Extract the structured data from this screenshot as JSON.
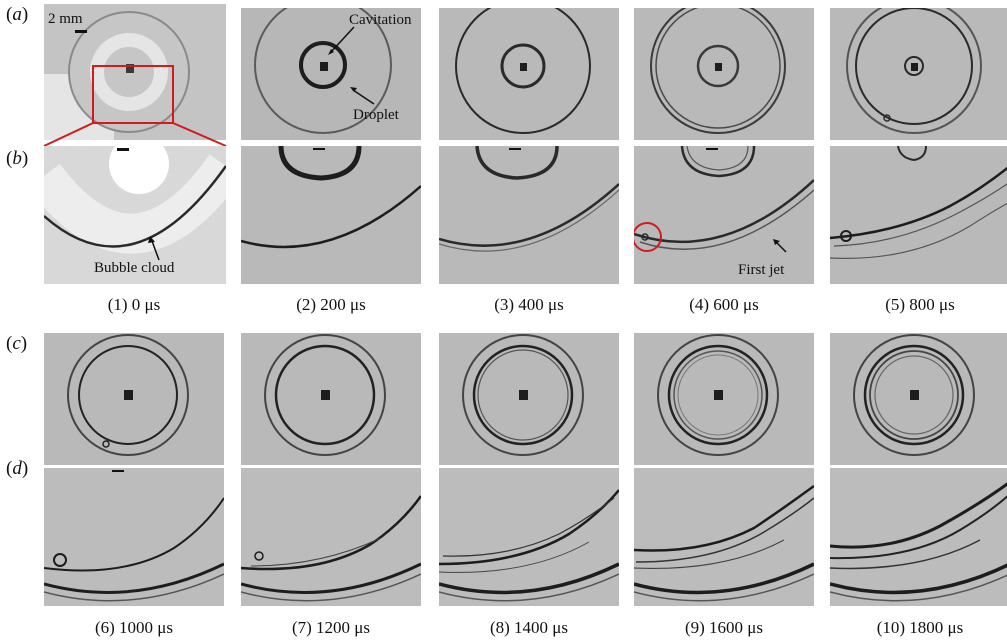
{
  "row_labels": {
    "a": "a",
    "b": "b",
    "c": "c",
    "d": "d"
  },
  "scale_bar": "2 mm",
  "annotations": {
    "cavitation": "Cavitation",
    "droplet": "Droplet",
    "bubble_cloud": "Bubble cloud",
    "first_jet": "First jet"
  },
  "captions_top": [
    "(1) 0 μs",
    "(2) 200 μs",
    "(3) 400 μs",
    "(4) 600 μs",
    "(5) 800 μs"
  ],
  "captions_bottom": [
    "(6) 1000 μs",
    "(7) 1200 μs",
    "(8) 1400 μs",
    "(9) 1600 μs",
    "(10) 1800 μs"
  ],
  "colors": {
    "frame_bg": "#b9b9b9",
    "highlight_box": "#d01c1c",
    "edge": "#1d1d1d"
  }
}
